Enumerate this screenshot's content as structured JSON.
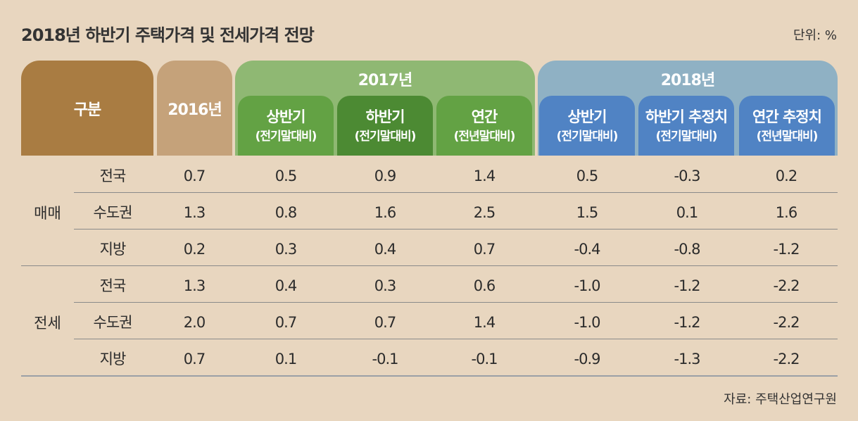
{
  "title": "2018년 하반기 주택가격 및 전세가격 전망",
  "unit": "단위: %",
  "source": "자료: 주택산업연구원",
  "header": {
    "gubun": "구분",
    "col_2016": "2016년",
    "group_2017": "2017년",
    "group_2018": "2018년",
    "sub_2017": [
      {
        "l1": "상반기",
        "l2": "(전기말대비)"
      },
      {
        "l1": "하반기",
        "l2": "(전기말대비)"
      },
      {
        "l1": "연간",
        "l2": "(전년말대비)"
      }
    ],
    "sub_2018": [
      {
        "l1": "상반기",
        "l2": "(전기말대비)"
      },
      {
        "l1": "하반기 추정치",
        "l2": "(전기말대비)"
      },
      {
        "l1": "연간 추정치",
        "l2": "(전년말대비)"
      }
    ]
  },
  "colors": {
    "gubun": "#a97c42",
    "col_2016": "#c5a27a",
    "group_2017": "#8fb873",
    "group_2018": "#8fb1c4",
    "sub_green": "#63a244",
    "sub_dark_green": "#4c8a33",
    "sub_blue": "#5083c4",
    "background": "#e8d6bf"
  },
  "chart_data": {
    "type": "table",
    "title": "2018년 하반기 주택가격 및 전세가격 전망",
    "unit": "%",
    "columns": [
      "2016년",
      "2017년 상반기(전기말대비)",
      "2017년 하반기(전기말대비)",
      "2017년 연간(전년말대비)",
      "2018년 상반기(전기말대비)",
      "2018년 하반기 추정치(전기말대비)",
      "2018년 연간 추정치(전년말대비)"
    ],
    "groups": [
      {
        "name": "매매",
        "rows": [
          {
            "label": "전국",
            "values": [
              "0.7",
              "0.5",
              "0.9",
              "1.4",
              "0.5",
              "-0.3",
              "0.2"
            ]
          },
          {
            "label": "수도권",
            "values": [
              "1.3",
              "0.8",
              "1.6",
              "2.5",
              "1.5",
              "0.1",
              "1.6"
            ]
          },
          {
            "label": "지방",
            "values": [
              "0.2",
              "0.3",
              "0.4",
              "0.7",
              "-0.4",
              "-0.8",
              "-1.2"
            ]
          }
        ]
      },
      {
        "name": "전세",
        "rows": [
          {
            "label": "전국",
            "values": [
              "1.3",
              "0.4",
              "0.3",
              "0.6",
              "-1.0",
              "-1.2",
              "-2.2"
            ]
          },
          {
            "label": "수도권",
            "values": [
              "2.0",
              "0.7",
              "0.7",
              "1.4",
              "-1.0",
              "-1.2",
              "-2.2"
            ]
          },
          {
            "label": "지방",
            "values": [
              "0.7",
              "0.1",
              "-0.1",
              "-0.1",
              "-0.9",
              "-1.3",
              "-2.2"
            ]
          }
        ]
      }
    ]
  }
}
